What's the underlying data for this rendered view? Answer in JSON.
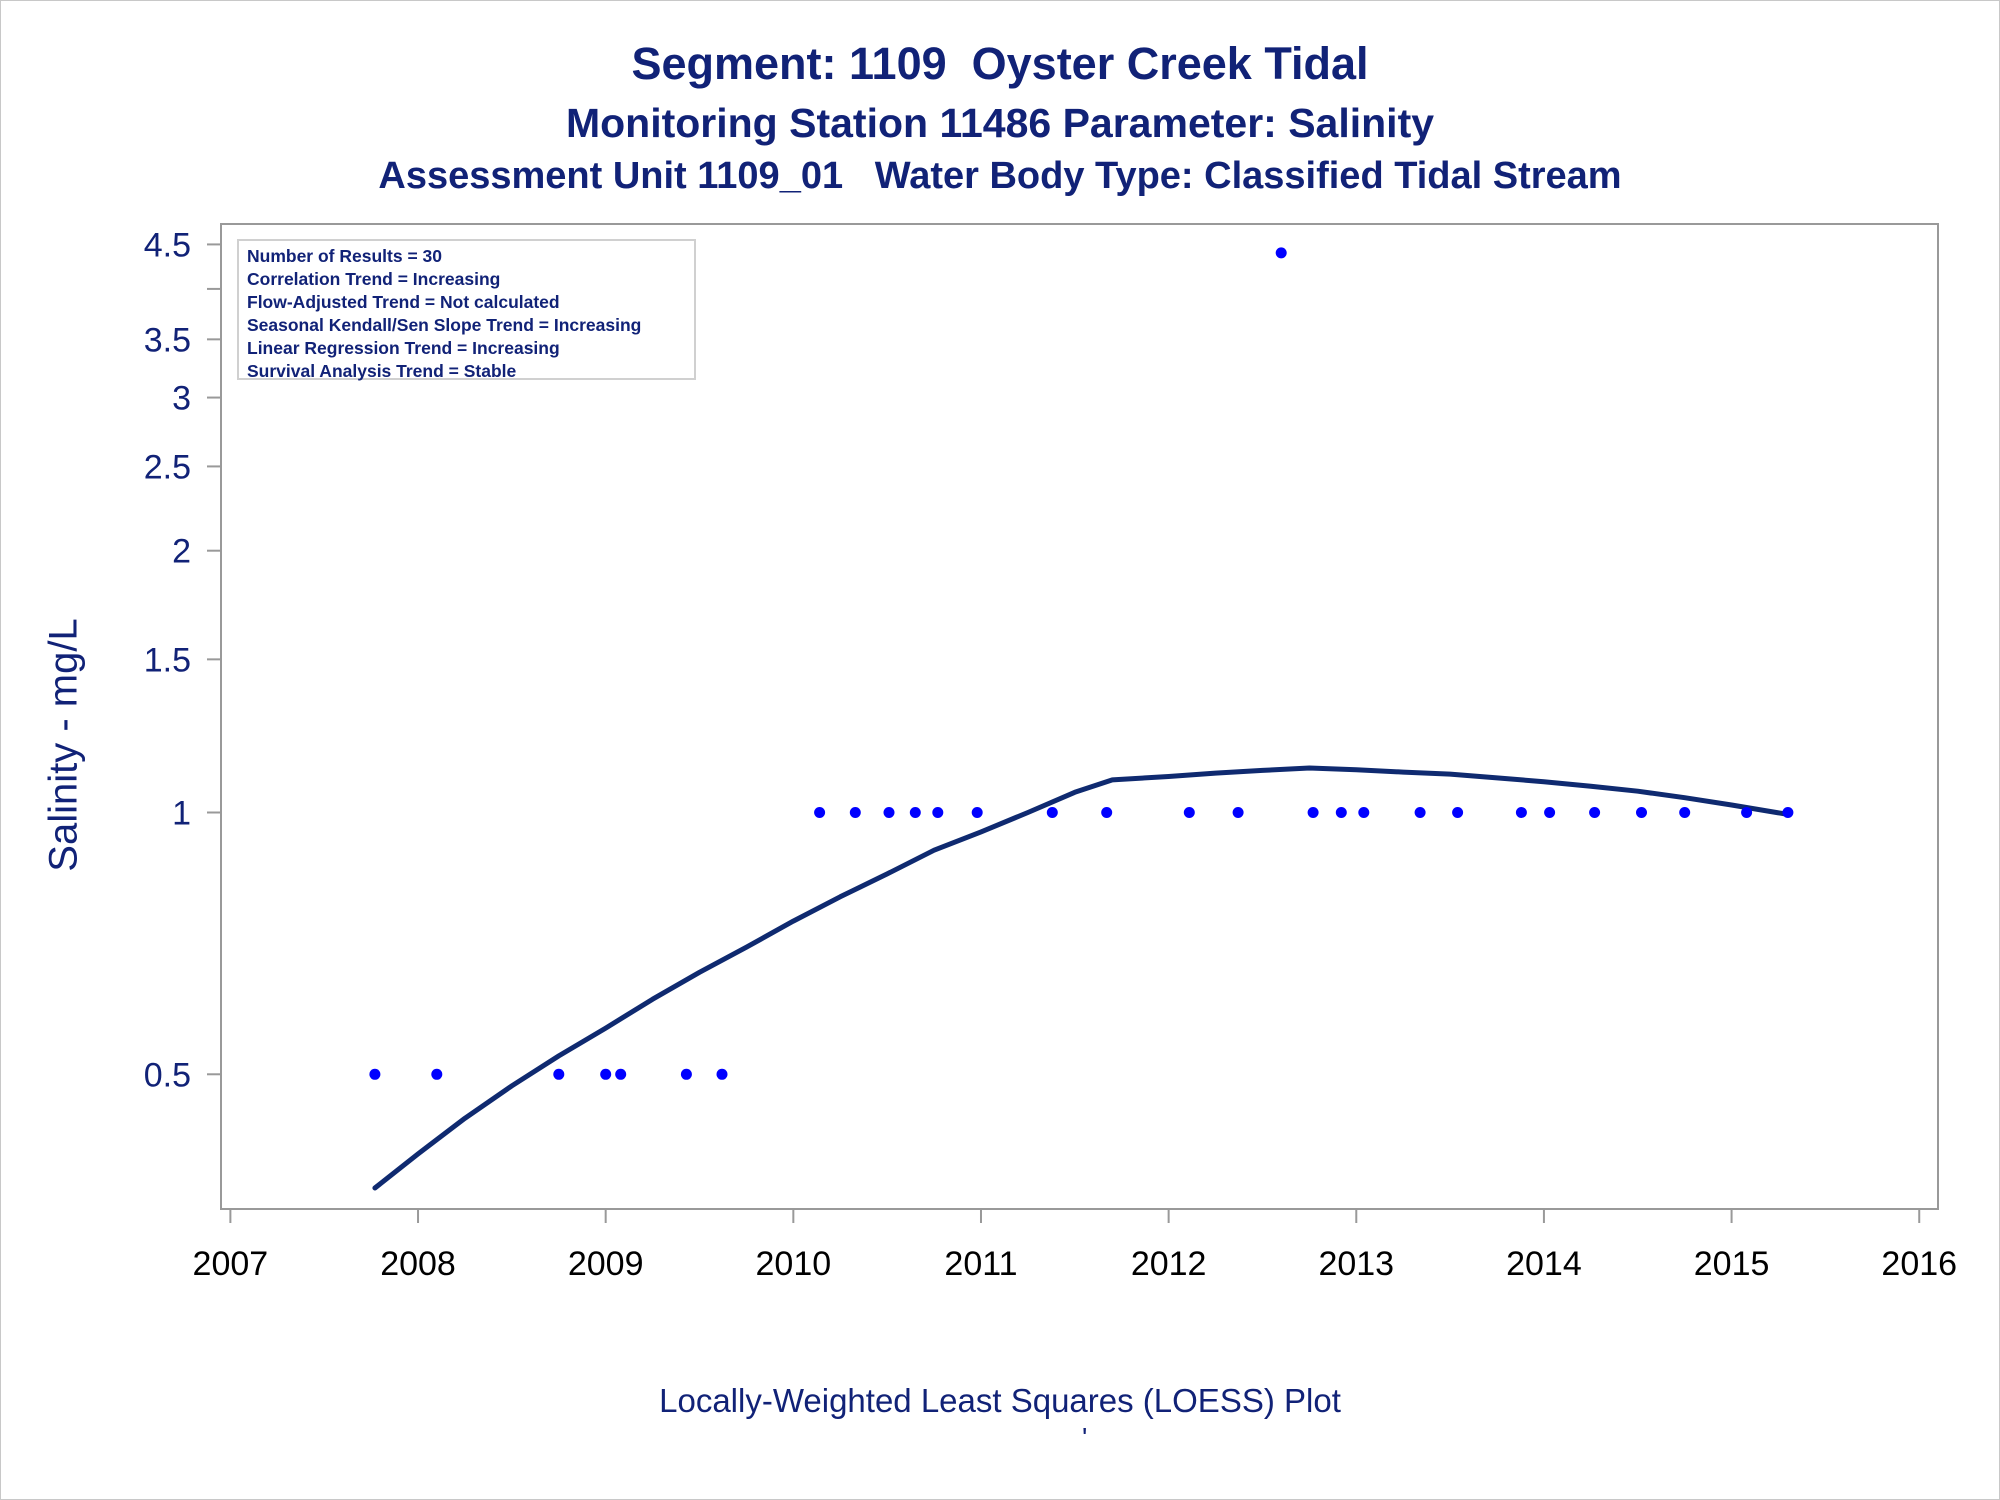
{
  "titles": {
    "line1": "Segment: 1109  Oyster Creek Tidal",
    "line2": "Monitoring Station 11486 Parameter: Salinity",
    "line3": "Assessment Unit 1109_01   Water Body Type: Classified Tidal Stream"
  },
  "stats": [
    "Number of Results = 30",
    "Correlation Trend = Increasing",
    "Flow-Adjusted Trend = Not calculated",
    "Seasonal Kendall/Sen Slope Trend = Increasing",
    "Linear Regression Trend = Increasing",
    "Survival Analysis Trend = Stable"
  ],
  "footer": {
    "caption": "Locally-Weighted Least Squares (LOESS) Plot",
    "mark": "'"
  },
  "chart_data": {
    "type": "scatter",
    "ylabel": "Salinity - mg/L",
    "yscale": "log",
    "ylim": [
      0.35,
      4.75
    ],
    "xlim": [
      2006.95,
      2016.1
    ],
    "xticks": [
      "2007",
      "2008",
      "2009",
      "2010",
      "2011",
      "2012",
      "2013",
      "2014",
      "2015",
      "2016"
    ],
    "yticks": [
      "0.5",
      "1",
      "1.5",
      "2",
      "2.5",
      "3",
      "3.5",
      "4.5"
    ],
    "grid": false,
    "colors": {
      "points": "#0000ff",
      "curve": "#0f2a70",
      "text": "#112277",
      "axis": "#999999"
    },
    "points": [
      {
        "x": 2007.77,
        "y": 0.5
      },
      {
        "x": 2008.1,
        "y": 0.5
      },
      {
        "x": 2008.75,
        "y": 0.5
      },
      {
        "x": 2009.0,
        "y": 0.5
      },
      {
        "x": 2009.08,
        "y": 0.5
      },
      {
        "x": 2009.43,
        "y": 0.5
      },
      {
        "x": 2009.62,
        "y": 0.5
      },
      {
        "x": 2010.14,
        "y": 1
      },
      {
        "x": 2010.33,
        "y": 1
      },
      {
        "x": 2010.51,
        "y": 1
      },
      {
        "x": 2010.65,
        "y": 1
      },
      {
        "x": 2010.77,
        "y": 1
      },
      {
        "x": 2010.98,
        "y": 1
      },
      {
        "x": 2011.38,
        "y": 1
      },
      {
        "x": 2011.67,
        "y": 1
      },
      {
        "x": 2012.11,
        "y": 1
      },
      {
        "x": 2012.37,
        "y": 1
      },
      {
        "x": 2012.6,
        "y": 4.4
      },
      {
        "x": 2012.77,
        "y": 1
      },
      {
        "x": 2012.92,
        "y": 1
      },
      {
        "x": 2013.04,
        "y": 1
      },
      {
        "x": 2013.34,
        "y": 1
      },
      {
        "x": 2013.54,
        "y": 1
      },
      {
        "x": 2013.88,
        "y": 1
      },
      {
        "x": 2014.03,
        "y": 1
      },
      {
        "x": 2014.27,
        "y": 1
      },
      {
        "x": 2014.52,
        "y": 1
      },
      {
        "x": 2014.75,
        "y": 1
      },
      {
        "x": 2015.08,
        "y": 1
      },
      {
        "x": 2015.3,
        "y": 1
      }
    ],
    "loess": [
      {
        "x": 2007.77,
        "y": 0.37
      },
      {
        "x": 2008.0,
        "y": 0.405
      },
      {
        "x": 2008.25,
        "y": 0.445
      },
      {
        "x": 2008.5,
        "y": 0.485
      },
      {
        "x": 2008.75,
        "y": 0.525
      },
      {
        "x": 2009.0,
        "y": 0.565
      },
      {
        "x": 2009.25,
        "y": 0.61
      },
      {
        "x": 2009.5,
        "y": 0.655
      },
      {
        "x": 2009.75,
        "y": 0.7
      },
      {
        "x": 2010.0,
        "y": 0.75
      },
      {
        "x": 2010.25,
        "y": 0.8
      },
      {
        "x": 2010.5,
        "y": 0.85
      },
      {
        "x": 2010.75,
        "y": 0.905
      },
      {
        "x": 2011.0,
        "y": 0.95
      },
      {
        "x": 2011.25,
        "y": 1.0
      },
      {
        "x": 2011.5,
        "y": 1.055
      },
      {
        "x": 2011.7,
        "y": 1.09
      },
      {
        "x": 2012.0,
        "y": 1.1
      },
      {
        "x": 2012.25,
        "y": 1.11
      },
      {
        "x": 2012.5,
        "y": 1.118
      },
      {
        "x": 2012.75,
        "y": 1.125
      },
      {
        "x": 2013.0,
        "y": 1.12
      },
      {
        "x": 2013.25,
        "y": 1.113
      },
      {
        "x": 2013.5,
        "y": 1.107
      },
      {
        "x": 2013.75,
        "y": 1.096
      },
      {
        "x": 2014.0,
        "y": 1.085
      },
      {
        "x": 2014.25,
        "y": 1.072
      },
      {
        "x": 2014.5,
        "y": 1.058
      },
      {
        "x": 2014.75,
        "y": 1.04
      },
      {
        "x": 2015.0,
        "y": 1.02
      },
      {
        "x": 2015.3,
        "y": 0.995
      }
    ]
  }
}
